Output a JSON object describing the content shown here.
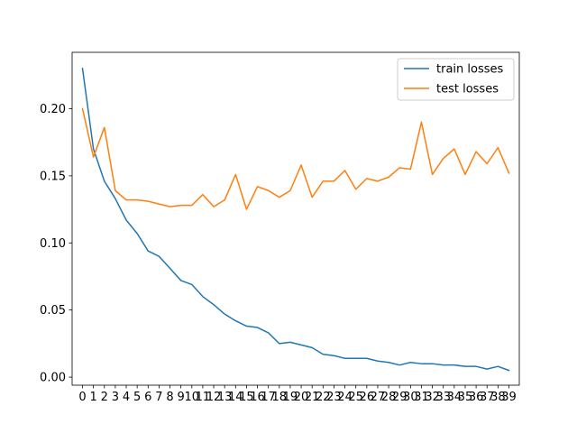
{
  "chart_data": {
    "type": "line",
    "title": "",
    "xlabel": "",
    "ylabel": "",
    "x": [
      0,
      1,
      2,
      3,
      4,
      5,
      6,
      7,
      8,
      9,
      10,
      11,
      12,
      13,
      14,
      15,
      16,
      17,
      18,
      19,
      20,
      21,
      22,
      23,
      24,
      25,
      26,
      27,
      28,
      29,
      30,
      31,
      32,
      33,
      34,
      35,
      36,
      37,
      38,
      39
    ],
    "xlim": [
      -0.95,
      39.95
    ],
    "ylim": [
      -0.006,
      0.242
    ],
    "yticks": [
      0.0,
      0.05,
      0.1,
      0.15,
      0.2
    ],
    "ytick_labels": [
      "0.00",
      "0.05",
      "0.10",
      "0.15",
      "0.20"
    ],
    "grid": false,
    "legend_position": "top-right",
    "series": [
      {
        "name": "train losses",
        "color": "#1f77b4",
        "values": [
          0.23,
          0.17,
          0.146,
          0.133,
          0.117,
          0.107,
          0.094,
          0.09,
          0.081,
          0.072,
          0.069,
          0.06,
          0.054,
          0.047,
          0.042,
          0.038,
          0.037,
          0.033,
          0.025,
          0.026,
          0.024,
          0.022,
          0.017,
          0.016,
          0.014,
          0.014,
          0.014,
          0.012,
          0.011,
          0.009,
          0.011,
          0.01,
          0.01,
          0.009,
          0.009,
          0.008,
          0.008,
          0.006,
          0.008,
          0.005
        ]
      },
      {
        "name": "test losses",
        "color": "#ff7f0e",
        "values": [
          0.2,
          0.164,
          0.186,
          0.139,
          0.132,
          0.132,
          0.131,
          0.129,
          0.127,
          0.128,
          0.128,
          0.136,
          0.127,
          0.132,
          0.151,
          0.125,
          0.142,
          0.139,
          0.134,
          0.139,
          0.158,
          0.134,
          0.146,
          0.146,
          0.154,
          0.14,
          0.148,
          0.146,
          0.149,
          0.156,
          0.155,
          0.19,
          0.151,
          0.163,
          0.17,
          0.151,
          0.168,
          0.159,
          0.171,
          0.152
        ]
      }
    ]
  }
}
